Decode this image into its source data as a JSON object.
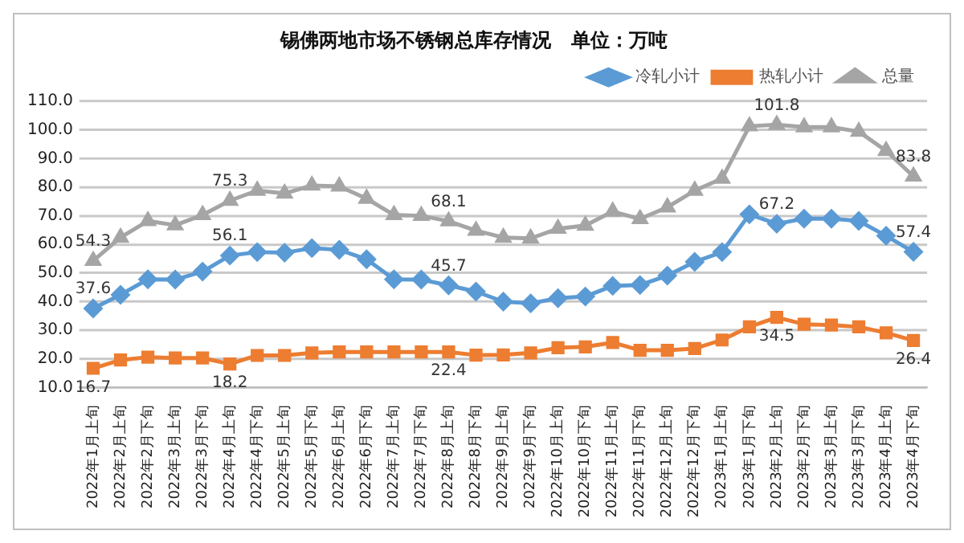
{
  "chart_data": {
    "type": "line",
    "title": "锡佛两地市场不锈钢总库存情况   单位：万吨",
    "categories": [
      "2022年1月上旬",
      "2022年2月上旬",
      "2022年2月下旬",
      "2022年3月上旬",
      "2022年3月下旬",
      "2022年4月上旬",
      "2022年4月下旬",
      "2022年5月上旬",
      "2022年5月下旬",
      "2022年6月上旬",
      "2022年6月下旬",
      "2022年7月上旬",
      "2022年7月下旬",
      "2022年8月上旬",
      "2022年8月下旬",
      "2022年9月上旬",
      "2022年9月下旬",
      "2022年10月上旬",
      "2022年10月下旬",
      "2022年11月上旬",
      "2022年11月下旬",
      "2022年12月上旬",
      "2022年12月下旬",
      "2023年1月上旬",
      "2023年1月下旬",
      "2023年2月上旬",
      "2023年2月下旬",
      "2023年3月上旬",
      "2023年3月下旬",
      "2023年4月上旬",
      "2023年4月下旬"
    ],
    "series": [
      {
        "name": "冷轧小计",
        "color": "#5b9bd5",
        "marker": "diamond",
        "values": [
          37.6,
          42.4,
          47.8,
          47.7,
          50.5,
          56.1,
          57.3,
          57.1,
          58.7,
          58.1,
          54.8,
          47.8,
          47.7,
          45.7,
          43.5,
          40,
          39.4,
          41.2,
          41.8,
          45.5,
          45.8,
          49.1,
          53.9,
          57.3,
          70.5,
          67.2,
          69,
          69,
          68.2,
          63,
          57.4
        ],
        "value_labels": [
          "37.6",
          null,
          null,
          null,
          null,
          "56.1",
          null,
          null,
          null,
          null,
          null,
          null,
          null,
          "45.7",
          null,
          null,
          null,
          null,
          null,
          null,
          null,
          null,
          null,
          null,
          null,
          "67.2",
          null,
          null,
          null,
          null,
          "57.4"
        ]
      },
      {
        "name": "热轧小计",
        "color": "#ed7d31",
        "marker": "square",
        "values": [
          16.7,
          19.6,
          20.6,
          20.3,
          20.3,
          18.2,
          21.2,
          21.2,
          22.1,
          22.4,
          22.4,
          22.4,
          22.4,
          22.4,
          21.3,
          21.4,
          22.1,
          23.9,
          24.2,
          25.7,
          23,
          23,
          23.6,
          26.6,
          31.2,
          34.5,
          32.1,
          31.8,
          31.2,
          29.1,
          26.4
        ],
        "value_labels": [
          "16.7",
          null,
          null,
          null,
          null,
          "18.2",
          null,
          null,
          null,
          null,
          null,
          null,
          null,
          "22.4",
          null,
          null,
          null,
          null,
          null,
          null,
          null,
          null,
          null,
          null,
          null,
          "34.5",
          null,
          null,
          null,
          null,
          "26.4"
        ]
      },
      {
        "name": "总量",
        "color": "#a5a5a5",
        "marker": "triangle",
        "values": [
          54.3,
          62.4,
          68.2,
          66.7,
          70.3,
          75.3,
          78.8,
          77.8,
          80.6,
          80.3,
          76,
          70.3,
          70,
          68.1,
          64.8,
          62.4,
          62.1,
          65.5,
          66.6,
          71.5,
          68.9,
          73,
          78.8,
          83,
          101.3,
          101.8,
          101,
          101,
          99.4,
          92.7,
          83.8
        ],
        "value_labels": [
          "54.3",
          null,
          null,
          null,
          null,
          "75.3",
          null,
          null,
          null,
          null,
          null,
          null,
          null,
          "68.1",
          null,
          null,
          null,
          null,
          null,
          null,
          null,
          null,
          null,
          null,
          null,
          "101.8",
          null,
          null,
          null,
          null,
          "83.8"
        ]
      }
    ],
    "ylim": [
      10,
      110
    ],
    "yticks": [
      {
        "value": 10,
        "label": "10.0"
      },
      {
        "value": 20,
        "label": "20.0"
      },
      {
        "value": 30,
        "label": "30.0"
      },
      {
        "value": 40,
        "label": "40.0"
      },
      {
        "value": 50,
        "label": "50.0"
      },
      {
        "value": 60,
        "label": "60.0"
      },
      {
        "value": 70,
        "label": "70.0"
      },
      {
        "value": 80,
        "label": "80.0"
      },
      {
        "value": 90,
        "label": "90.0"
      },
      {
        "value": 100,
        "label": "100.0"
      },
      {
        "value": 110,
        "label": "110.0"
      }
    ],
    "grid": "y",
    "legend": "top right",
    "line_style": "solid"
  }
}
